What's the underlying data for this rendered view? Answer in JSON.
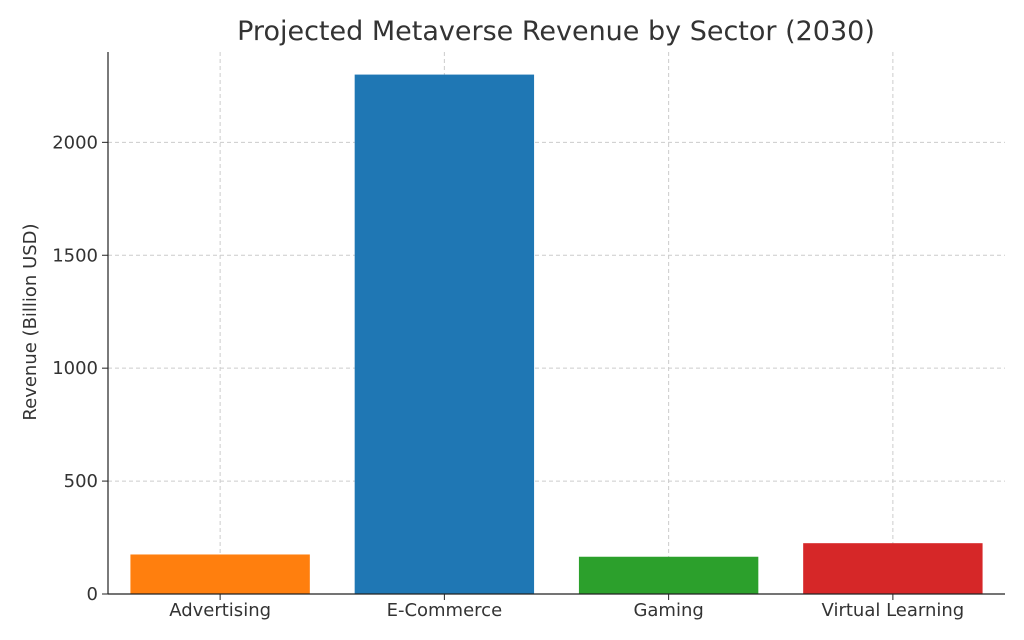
{
  "chart_data": {
    "type": "bar",
    "title": "Projected Metaverse Revenue by Sector (2030)",
    "xlabel": "",
    "ylabel": "Revenue (Billion USD)",
    "categories": [
      "Advertising",
      "E-Commerce",
      "Gaming",
      "Virtual Learning"
    ],
    "values": [
      175,
      2300,
      165,
      225
    ],
    "colors": [
      "#ff7f0e",
      "#1f77b4",
      "#2ca02c",
      "#d62728"
    ],
    "ylim": [
      0,
      2400
    ],
    "yticks": [
      0,
      500,
      1000,
      1500,
      2000
    ],
    "ytick_labels": [
      "0",
      "500",
      "1000",
      "1500",
      "2000"
    ],
    "grid": true,
    "legend": "none"
  }
}
